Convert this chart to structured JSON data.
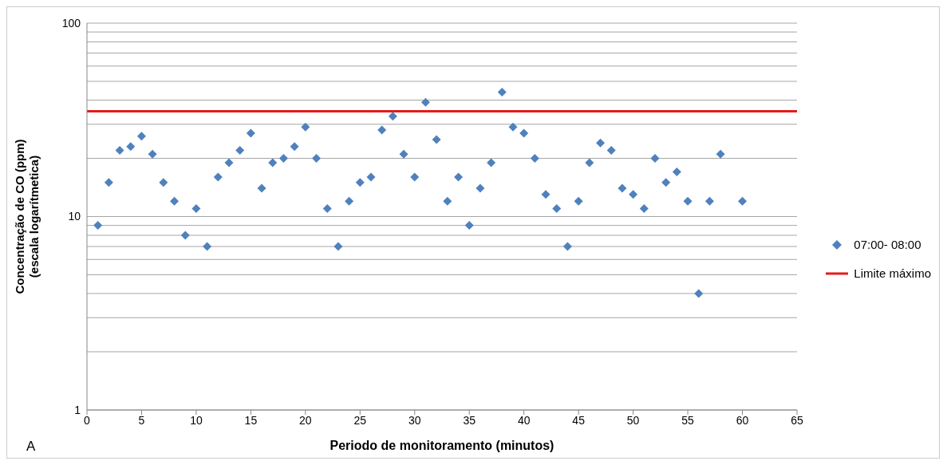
{
  "chart_data": {
    "type": "scatter",
    "xlabel": "Periodo de monitoramento (minutos)",
    "ylabel": "Concentração de CO (ppm)\n(escala logarítmetica)",
    "annotations": [
      "A"
    ],
    "x": [
      1,
      2,
      3,
      4,
      5,
      6,
      7,
      8,
      9,
      10,
      11,
      12,
      13,
      14,
      15,
      16,
      17,
      18,
      19,
      20,
      21,
      22,
      23,
      24,
      25,
      26,
      27,
      28,
      29,
      30,
      31,
      32,
      33,
      34,
      35,
      36,
      37,
      38,
      39,
      40,
      41,
      42,
      43,
      44,
      45,
      46,
      47,
      48,
      49,
      50,
      51,
      52,
      53,
      54,
      55,
      56,
      57,
      58,
      60
    ],
    "series": [
      {
        "name": "07:00- 08:00",
        "color": "#4f81bd",
        "values": [
          9,
          15,
          22,
          23,
          26,
          21,
          15,
          12,
          8,
          11,
          7,
          16,
          19,
          22,
          27,
          14,
          19,
          20,
          23,
          29,
          20,
          11,
          7,
          12,
          15,
          16,
          28,
          33,
          21,
          16,
          39,
          25,
          12,
          16,
          9,
          14,
          19,
          44,
          29,
          27,
          20,
          13,
          11,
          7,
          12,
          19,
          24,
          22,
          14,
          13,
          11,
          20,
          15,
          17,
          12,
          4,
          12,
          21,
          12
        ]
      }
    ],
    "ref_lines": [
      {
        "axis": "y",
        "value": 35,
        "label": "Limite máximo",
        "color": "#e41a1c"
      }
    ],
    "log": "y",
    "marker": "diamond",
    "grid": "y",
    "legend": "right",
    "xlim": [
      0,
      65
    ],
    "xticks": [
      0,
      5,
      10,
      15,
      20,
      25,
      30,
      35,
      40,
      45,
      50,
      55,
      60,
      65
    ],
    "ylim": [
      1,
      100
    ],
    "yticks": [
      1,
      {
        "value": 2,
        "label": null
      },
      {
        "value": 3,
        "label": null
      },
      {
        "value": 4,
        "label": null
      },
      {
        "value": 5,
        "label": null
      },
      {
        "value": 6,
        "label": null
      },
      {
        "value": 7,
        "label": null
      },
      {
        "value": 8,
        "label": null
      },
      {
        "value": 9,
        "label": null
      },
      10,
      {
        "value": 20,
        "label": null
      },
      {
        "value": 30,
        "label": null
      },
      {
        "value": 40,
        "label": null
      },
      {
        "value": 50,
        "label": null
      },
      {
        "value": 60,
        "label": null
      },
      {
        "value": 70,
        "label": null
      },
      {
        "value": 80,
        "label": null
      },
      {
        "value": 90,
        "label": null
      },
      100
    ]
  }
}
